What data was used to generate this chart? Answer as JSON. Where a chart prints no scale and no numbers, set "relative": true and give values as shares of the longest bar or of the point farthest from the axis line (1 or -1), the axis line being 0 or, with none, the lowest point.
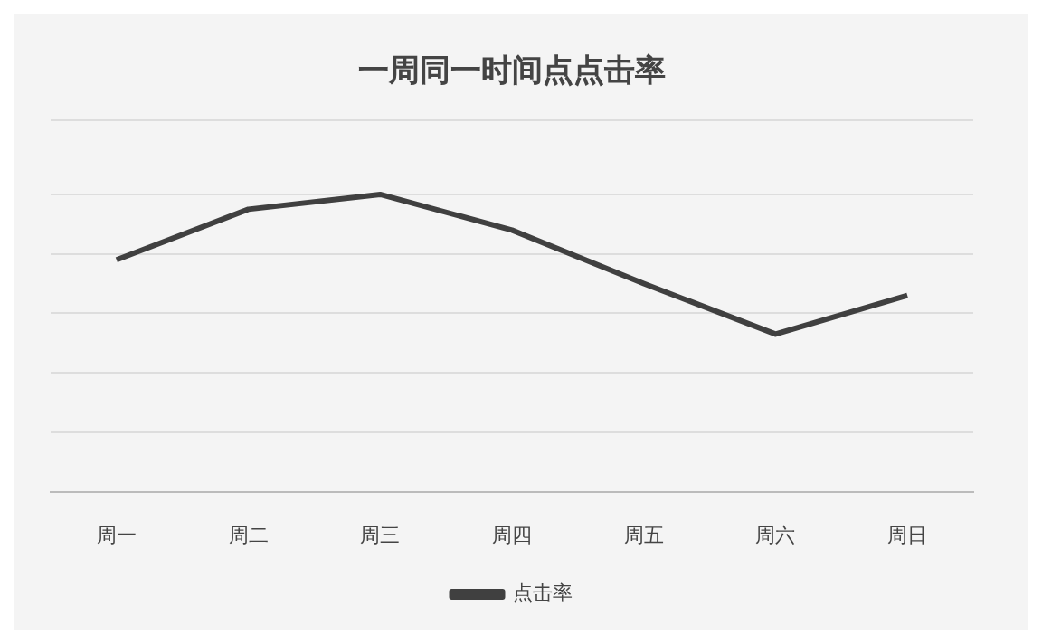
{
  "chart_data": {
    "type": "line",
    "title": "一周同一时间点点击率",
    "relative": true,
    "grid": "y",
    "legend": "bottom",
    "marker": "none",
    "categories": [
      "周一",
      "周二",
      "周三",
      "周四",
      "周五",
      "周六",
      "周日"
    ],
    "series": [
      {
        "name": "点击率",
        "color": "#404040",
        "values": [
          0.78,
          0.95,
          1,
          0.88,
          0.7,
          0.53,
          0.66
        ]
      }
    ]
  }
}
